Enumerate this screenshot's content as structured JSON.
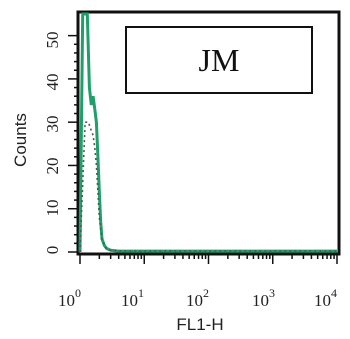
{
  "chart_data": {
    "type": "line",
    "title": "",
    "xlabel": "FL1-H",
    "ylabel": "Counts",
    "x_scale": "log",
    "xlim": [
      1,
      10000
    ],
    "ylim": [
      0,
      55
    ],
    "x_ticks": [
      {
        "value": 1,
        "base": "10",
        "exp": "0"
      },
      {
        "value": 10,
        "base": "10",
        "exp": "1"
      },
      {
        "value": 100,
        "base": "10",
        "exp": "2"
      },
      {
        "value": 1000,
        "base": "10",
        "exp": "3"
      },
      {
        "value": 10000,
        "base": "10",
        "exp": "4"
      }
    ],
    "y_ticks": [
      "0",
      "10",
      "20",
      "30",
      "40",
      "50"
    ],
    "annotation": "JM",
    "grid": false,
    "series": [
      {
        "style": "solid",
        "color": "#1fa06a",
        "x": [
          1,
          1.1,
          1.2,
          1.3,
          1.4,
          1.5,
          1.6,
          1.7,
          1.8,
          1.9,
          2.0,
          2.1,
          2.2,
          2.4,
          2.6,
          3.0,
          4,
          10,
          100,
          1000,
          10000
        ],
        "y": [
          0,
          60,
          60,
          60,
          38,
          34,
          36,
          33,
          30,
          22,
          14,
          7,
          3,
          1.5,
          0.8,
          0.4,
          0.2,
          0.2,
          0.2,
          0.2,
          0.2
        ]
      },
      {
        "style": "dotted",
        "color": "#555555",
        "x": [
          1,
          1.2,
          1.35,
          1.5,
          1.6,
          1.7,
          1.8,
          1.9,
          2.0,
          2.2,
          2.5,
          3,
          5,
          10000
        ],
        "y": [
          0,
          30,
          30,
          28,
          27,
          24,
          20,
          14,
          8,
          3,
          1,
          0.4,
          0.2,
          0.2
        ]
      }
    ]
  }
}
